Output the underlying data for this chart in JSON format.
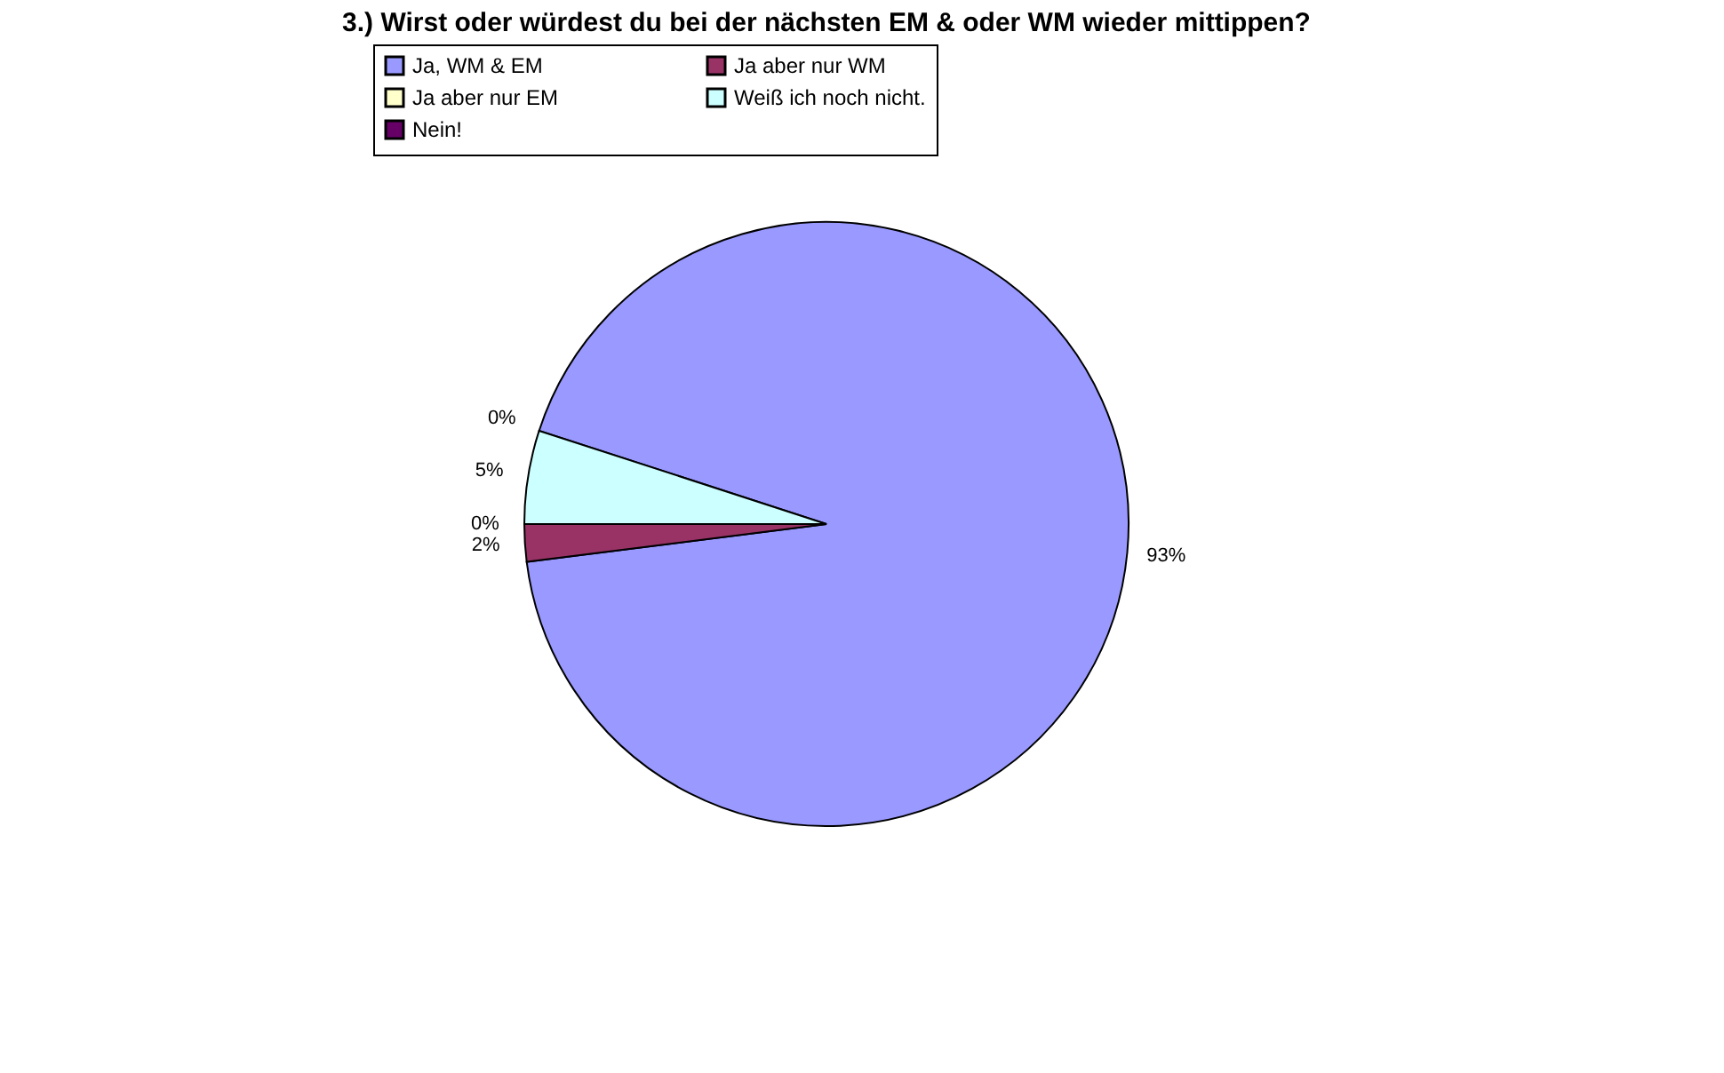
{
  "chart_data": {
    "type": "pie",
    "title": "3.) Wirst oder würdest du bei der nächsten EM & oder WM wieder mittippen?",
    "categories": [
      "Ja, WM & EM",
      "Ja aber nur WM",
      "Ja aber nur EM",
      "Weiß ich noch nicht.",
      "Nein!"
    ],
    "values": [
      93,
      2,
      0,
      5,
      0
    ],
    "value_labels": [
      "93%",
      "2%",
      "0%",
      "5%",
      "0%"
    ],
    "colors": [
      "#9999ff",
      "#993366",
      "#ffffcc",
      "#ccffff",
      "#660066"
    ],
    "legend": "top"
  }
}
